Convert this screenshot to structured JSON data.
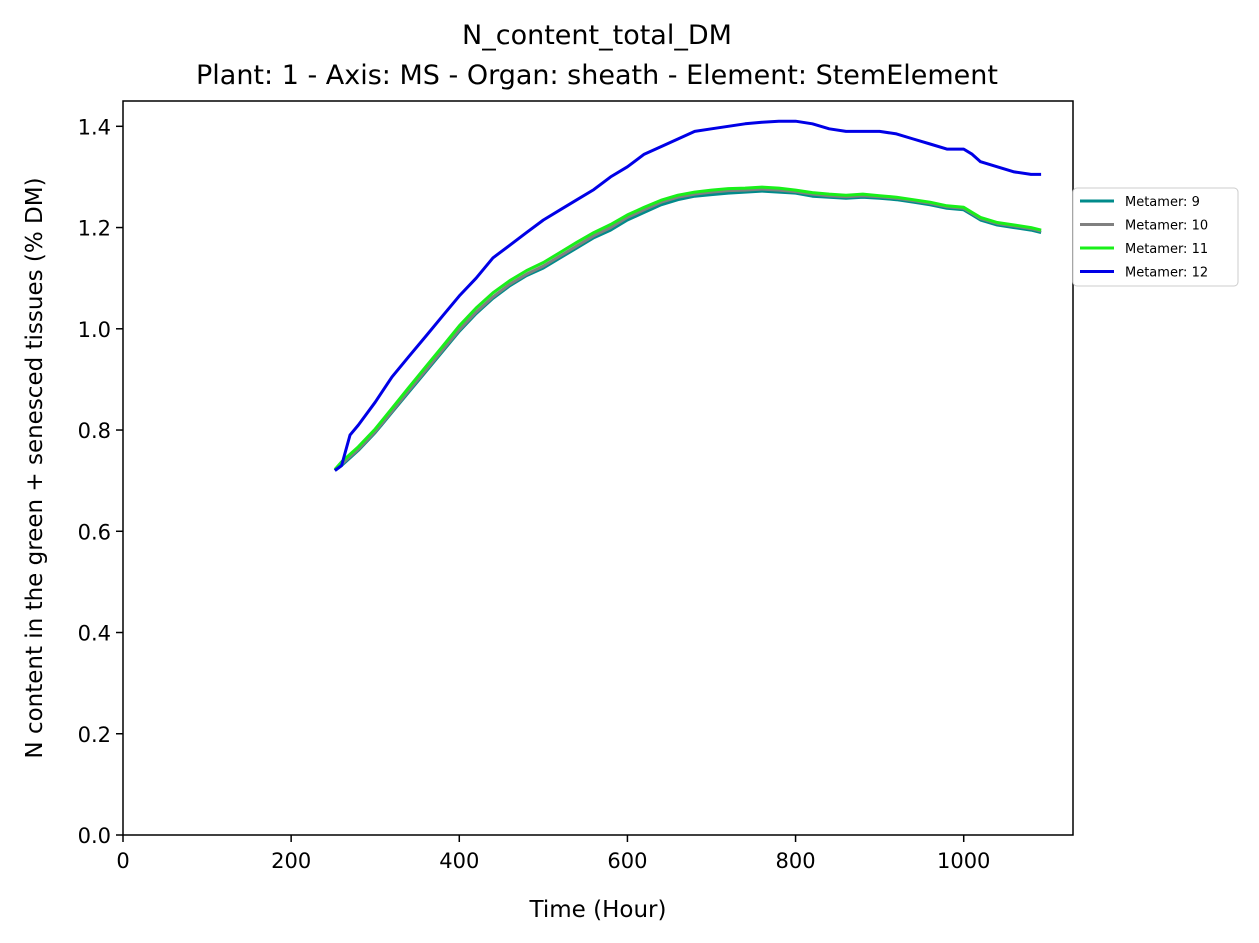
{
  "chart_data": {
    "type": "line",
    "title": "N_content_total_DM",
    "subtitle": "Plant: 1 - Axis: MS - Organ: sheath - Element: StemElement",
    "xlabel": "Time (Hour)",
    "ylabel": "N content in the green + senesced tissues (% DM)",
    "xlim": [
      0,
      1130
    ],
    "ylim": [
      0,
      1.45
    ],
    "xticks": [
      "0",
      "200",
      "400",
      "600",
      "800",
      "1000"
    ],
    "yticks": [
      "0.0",
      "0.2",
      "0.4",
      "0.6",
      "0.8",
      "1.0",
      "1.2",
      "1.4"
    ],
    "grid": false,
    "legend_position": "outside-right",
    "series": [
      {
        "name": "Metamer: 9",
        "color": "#008b8b",
        "x": [
          252,
          260,
          280,
          300,
          320,
          340,
          360,
          380,
          400,
          420,
          440,
          460,
          480,
          500,
          520,
          540,
          560,
          580,
          600,
          620,
          640,
          660,
          680,
          700,
          720,
          740,
          760,
          780,
          800,
          820,
          840,
          860,
          880,
          900,
          920,
          940,
          960,
          980,
          1000,
          1010,
          1020,
          1040,
          1060,
          1080,
          1092
        ],
        "y": [
          0.72,
          0.73,
          0.76,
          0.795,
          0.835,
          0.875,
          0.915,
          0.955,
          0.995,
          1.03,
          1.06,
          1.085,
          1.105,
          1.12,
          1.14,
          1.16,
          1.18,
          1.195,
          1.215,
          1.23,
          1.245,
          1.255,
          1.262,
          1.265,
          1.268,
          1.27,
          1.272,
          1.27,
          1.268,
          1.262,
          1.26,
          1.258,
          1.26,
          1.258,
          1.255,
          1.25,
          1.245,
          1.238,
          1.235,
          1.225,
          1.215,
          1.205,
          1.2,
          1.195,
          1.19
        ]
      },
      {
        "name": "Metamer: 10",
        "color": "#808080",
        "x": [
          252,
          260,
          280,
          300,
          320,
          340,
          360,
          380,
          400,
          420,
          440,
          460,
          480,
          500,
          520,
          540,
          560,
          580,
          600,
          620,
          640,
          660,
          680,
          700,
          720,
          740,
          760,
          780,
          800,
          820,
          840,
          860,
          880,
          900,
          920,
          940,
          960,
          980,
          1000,
          1010,
          1020,
          1040,
          1060,
          1080,
          1092
        ],
        "y": [
          0.72,
          0.733,
          0.762,
          0.797,
          0.837,
          0.878,
          0.918,
          0.958,
          0.998,
          1.033,
          1.063,
          1.088,
          1.108,
          1.124,
          1.144,
          1.164,
          1.184,
          1.2,
          1.22,
          1.235,
          1.25,
          1.26,
          1.266,
          1.27,
          1.273,
          1.274,
          1.276,
          1.274,
          1.271,
          1.266,
          1.263,
          1.261,
          1.263,
          1.261,
          1.258,
          1.253,
          1.248,
          1.241,
          1.238,
          1.228,
          1.218,
          1.208,
          1.203,
          1.198,
          1.193
        ]
      },
      {
        "name": "Metamer: 11",
        "color": "#19f019",
        "x": [
          252,
          260,
          280,
          300,
          320,
          340,
          360,
          380,
          400,
          420,
          440,
          460,
          480,
          500,
          520,
          540,
          560,
          580,
          600,
          620,
          640,
          660,
          680,
          700,
          720,
          740,
          760,
          780,
          800,
          820,
          840,
          860,
          880,
          900,
          920,
          940,
          960,
          980,
          1000,
          1010,
          1020,
          1040,
          1060,
          1080,
          1092
        ],
        "y": [
          0.722,
          0.737,
          0.767,
          0.802,
          0.843,
          0.884,
          0.925,
          0.965,
          1.006,
          1.041,
          1.071,
          1.095,
          1.115,
          1.131,
          1.151,
          1.171,
          1.19,
          1.206,
          1.225,
          1.24,
          1.254,
          1.264,
          1.27,
          1.274,
          1.277,
          1.278,
          1.28,
          1.278,
          1.274,
          1.269,
          1.266,
          1.264,
          1.266,
          1.263,
          1.26,
          1.255,
          1.25,
          1.243,
          1.24,
          1.23,
          1.22,
          1.21,
          1.205,
          1.2,
          1.195
        ]
      },
      {
        "name": "Metamer: 12",
        "color": "#0000e6",
        "x": [
          252,
          260,
          270,
          280,
          300,
          320,
          340,
          360,
          380,
          400,
          420,
          440,
          460,
          480,
          500,
          520,
          540,
          560,
          580,
          600,
          620,
          640,
          660,
          680,
          700,
          720,
          740,
          760,
          780,
          800,
          820,
          840,
          860,
          880,
          900,
          920,
          940,
          960,
          980,
          1000,
          1010,
          1020,
          1040,
          1060,
          1080,
          1092
        ],
        "y": [
          0.72,
          0.73,
          0.79,
          0.81,
          0.855,
          0.905,
          0.945,
          0.985,
          1.025,
          1.065,
          1.1,
          1.14,
          1.165,
          1.19,
          1.215,
          1.235,
          1.255,
          1.275,
          1.3,
          1.32,
          1.345,
          1.36,
          1.375,
          1.39,
          1.395,
          1.4,
          1.405,
          1.408,
          1.41,
          1.41,
          1.405,
          1.395,
          1.39,
          1.39,
          1.39,
          1.385,
          1.375,
          1.365,
          1.355,
          1.355,
          1.345,
          1.33,
          1.32,
          1.31,
          1.305,
          1.305
        ]
      }
    ]
  }
}
